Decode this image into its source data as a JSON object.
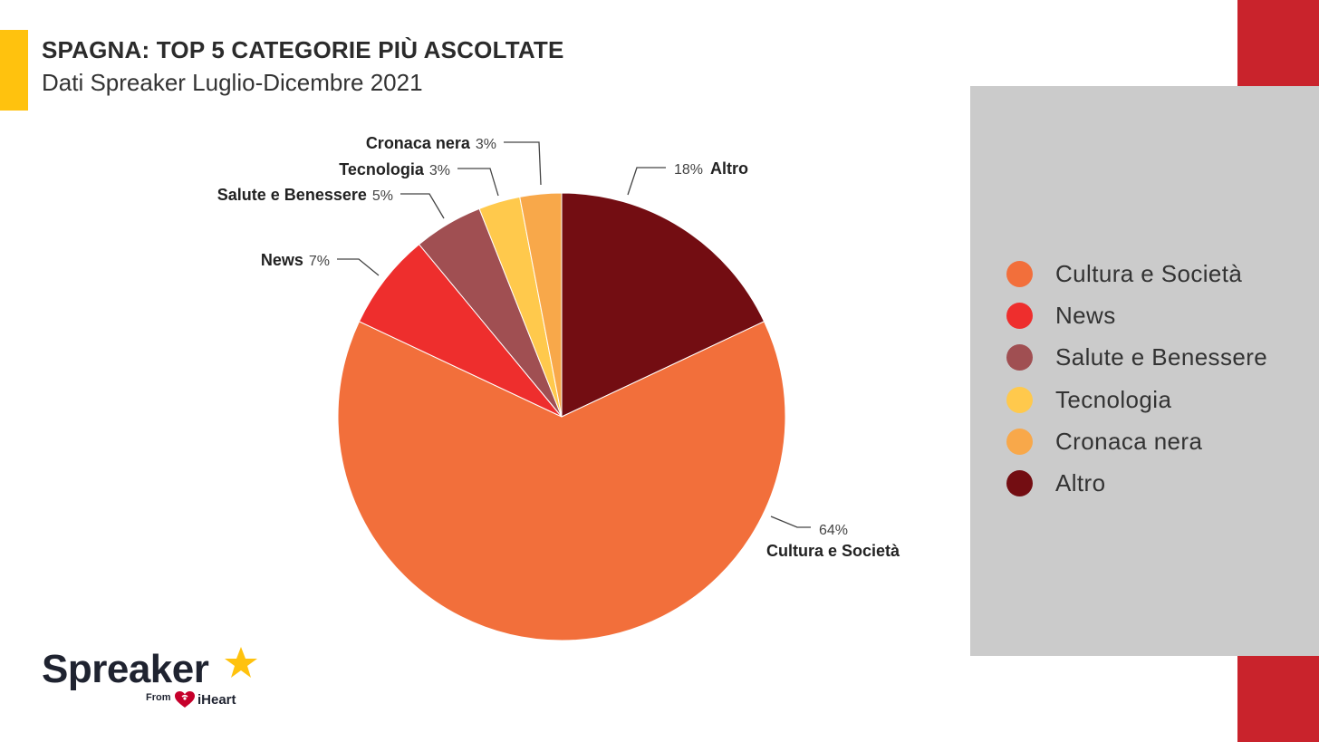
{
  "header": {
    "title": "SPAGNA: TOP 5 CATEGORIE PIÙ ASCOLTATE",
    "subtitle": "Dati Spreaker Luglio-Dicembre 2021"
  },
  "colors": {
    "accent_yellow": "#FFC20E",
    "brand_red": "#C9232C",
    "legend_panel": "#CBCBCB"
  },
  "chart_data": {
    "type": "pie",
    "title": "SPAGNA: TOP 5 CATEGORIE PIÙ ASCOLTATE",
    "subtitle": "Dati Spreaker Luglio-Dicembre 2021",
    "start_angle_deg": 0,
    "direction": "clockwise",
    "legend_position": "right",
    "slices": [
      {
        "name": "Altro",
        "value": 18,
        "label": "18%",
        "color": "#730D12"
      },
      {
        "name": "Cultura e Società",
        "value": 64,
        "label": "64%",
        "color": "#F26F3B"
      },
      {
        "name": "News",
        "value": 7,
        "label": "7%",
        "color": "#EE2E2D"
      },
      {
        "name": "Salute e Benessere",
        "value": 5,
        "label": "5%",
        "color": "#A04F52"
      },
      {
        "name": "Tecnologia",
        "value": 3,
        "label": "3%",
        "color": "#FFC94C"
      },
      {
        "name": "Cronaca nera",
        "value": 3,
        "label": "3%",
        "color": "#F8A84A"
      }
    ]
  },
  "legend": {
    "items": [
      {
        "label": "Cultura e Società",
        "color": "#F26F3B"
      },
      {
        "label": "News",
        "color": "#EE2E2D"
      },
      {
        "label": "Salute e Benessere",
        "color": "#A04F52"
      },
      {
        "label": "Tecnologia",
        "color": "#FFC94C"
      },
      {
        "label": "Cronaca nera",
        "color": "#F8A84A"
      },
      {
        "label": "Altro",
        "color": "#730D12"
      }
    ]
  },
  "logo": {
    "wordmark": "Spreaker",
    "from": "From",
    "partner": "iHeart",
    "star_color": "#FFC20E",
    "heart_color": "#C6002B"
  }
}
